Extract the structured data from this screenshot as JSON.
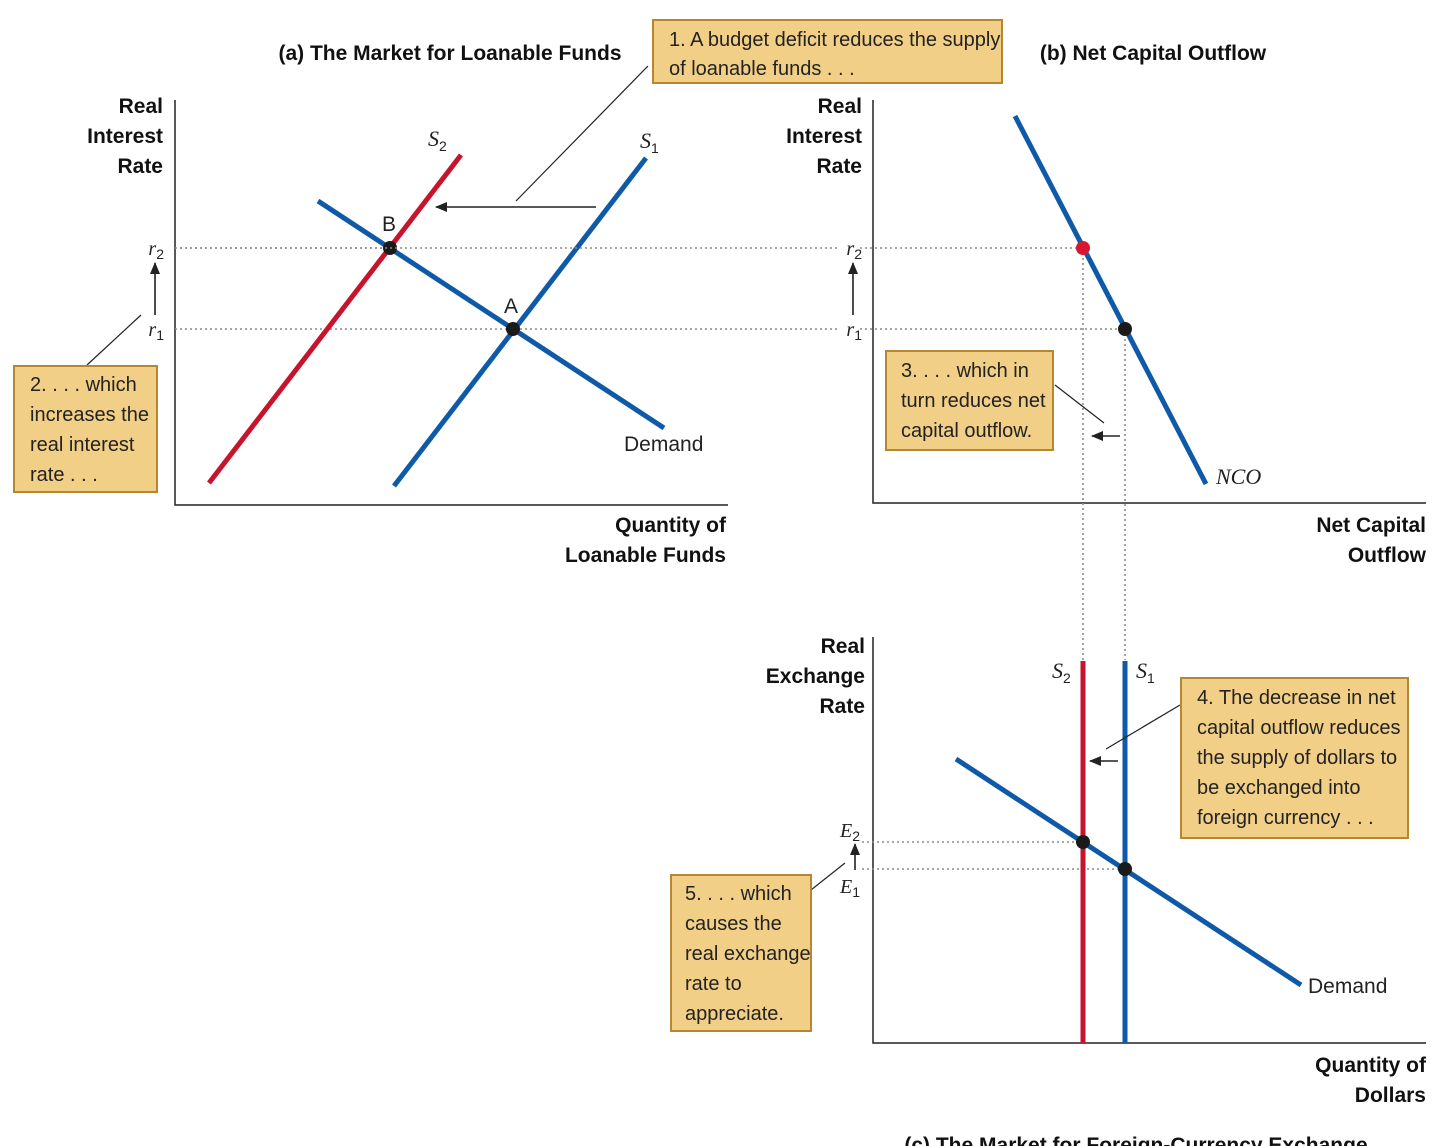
{
  "chart_data": [
    {
      "id": "panel-a",
      "type": "line",
      "title": "(a) The Market for Loanable Funds",
      "ylabel_lines": [
        "Real",
        "Interest",
        "Rate"
      ],
      "xlabel_lines": [
        "Quantity of",
        "Loanable Funds"
      ],
      "yticks": [
        {
          "main": "r",
          "sub": "2",
          "level": "r2"
        },
        {
          "main": "r",
          "sub": "1",
          "level": "r1"
        }
      ],
      "series": [
        {
          "name": "S",
          "sub": "2",
          "color": "#c7132b",
          "role": "new supply"
        },
        {
          "name": "S",
          "sub": "1",
          "color": "#0f5aa8",
          "role": "original supply"
        },
        {
          "name": "Demand",
          "color": "#0f5aa8",
          "role": "demand"
        }
      ],
      "points": [
        {
          "label": "B",
          "level": "r2"
        },
        {
          "label": "A",
          "level": "r1"
        }
      ]
    },
    {
      "id": "panel-b",
      "type": "line",
      "title": "(b) Net Capital Outflow",
      "ylabel_lines": [
        "Real",
        "Interest",
        "Rate"
      ],
      "xlabel_lines": [
        "Net Capital",
        "Outflow"
      ],
      "yticks": [
        {
          "main": "r",
          "sub": "2",
          "level": "r2"
        },
        {
          "main": "r",
          "sub": "1",
          "level": "r1"
        }
      ],
      "series": [
        {
          "name": "NCO",
          "color": "#0f5aa8",
          "role": "net capital outflow"
        }
      ]
    },
    {
      "id": "panel-c",
      "type": "line",
      "title": "(c) The Market for Foreign-Currency Exchange",
      "ylabel_lines": [
        "Real",
        "Exchange",
        "Rate"
      ],
      "xlabel_lines": [
        "Quantity of",
        "Dollars"
      ],
      "yticks": [
        {
          "main": "E",
          "sub": "2",
          "level": "E2"
        },
        {
          "main": "E",
          "sub": "1",
          "level": "E1"
        }
      ],
      "series": [
        {
          "name": "S",
          "sub": "2",
          "color": "#c7132b",
          "role": "new supply"
        },
        {
          "name": "S",
          "sub": "1",
          "color": "#0f5aa8",
          "role": "original supply"
        },
        {
          "name": "Demand",
          "color": "#0f5aa8",
          "role": "demand"
        }
      ]
    }
  ],
  "callouts": [
    {
      "id": "c1",
      "lines": [
        "1. A budget deficit reduces the supply",
        "of loanable funds . . ."
      ]
    },
    {
      "id": "c2",
      "lines": [
        "2. . . . which",
        "increases the",
        "real interest",
        "rate . . ."
      ]
    },
    {
      "id": "c3",
      "lines": [
        "3. . . . which in",
        "turn reduces net",
        "capital outflow."
      ]
    },
    {
      "id": "c4",
      "lines": [
        "4. The decrease in net",
        "capital outflow reduces",
        "the supply of dollars to",
        "be exchanged into",
        "foreign currency . . ."
      ]
    },
    {
      "id": "c5",
      "lines": [
        "5. . . . which",
        "causes the",
        "real exchange",
        "rate to",
        "appreciate."
      ]
    }
  ],
  "colors": {
    "supply_shifted": "#c7132b",
    "curve": "#0f5aa8",
    "callout_fill": "#f2cf86",
    "callout_border": "#b5872f",
    "point_highlight": "#d6172f"
  }
}
